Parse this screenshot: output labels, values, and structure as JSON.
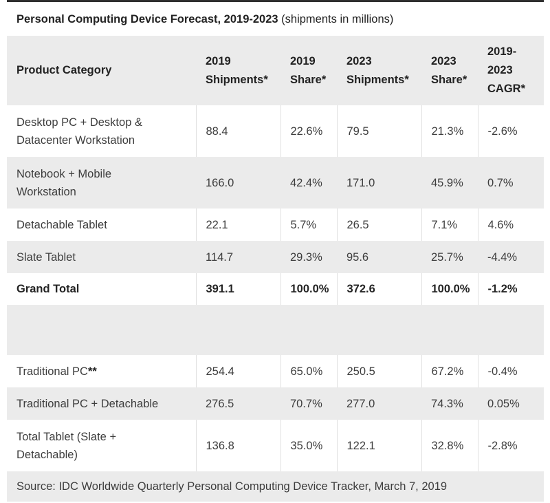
{
  "title": {
    "main": "Personal Computing Device Forecast, 2019-2023",
    "subtitle": " (shipments in millions)"
  },
  "table": {
    "columns": {
      "category": "Product Category",
      "shipments_2019": "2019\nShipments*",
      "share_2019": "2019\nShare*",
      "shipments_2023": "2023\nShipments*",
      "share_2023": "2023\nShare*",
      "cagr": "2019-\n2023\nCAGR*"
    },
    "rows": [
      {
        "label": "Desktop PC + Desktop &\nDatacenter Workstation",
        "c": [
          "88.4",
          "22.6%",
          "79.5",
          "21.3%",
          "-2.6%"
        ]
      },
      {
        "label": "Notebook + Mobile\nWorkstation",
        "c": [
          "166.0",
          "42.4%",
          "171.0",
          "45.9%",
          "0.7%"
        ]
      },
      {
        "label": "Detachable Tablet",
        "c": [
          "22.1",
          "5.7%",
          "26.5",
          "7.1%",
          "4.6%"
        ]
      },
      {
        "label": "Slate Tablet",
        "c": [
          "114.7",
          "29.3%",
          "95.6",
          "25.7%",
          "-4.4%"
        ]
      },
      {
        "label": "Grand Total",
        "c": [
          "391.1",
          "100.0%",
          "372.6",
          "100.0%",
          "-1.2%"
        ]
      },
      {
        "label": "Traditional PC",
        "suffix": "**",
        "c": [
          "254.4",
          "65.0%",
          "250.5",
          "67.2%",
          "-0.4%"
        ]
      },
      {
        "label": "Traditional PC + Detachable",
        "c": [
          "276.5",
          "70.7%",
          "277.0",
          "74.3%",
          "0.05%"
        ]
      },
      {
        "label": "Total Tablet (Slate +\nDetachable)",
        "c": [
          "136.8",
          "35.0%",
          "122.1",
          "32.8%",
          "-2.8%"
        ]
      }
    ]
  },
  "footer": {
    "source": "Source: IDC Worldwide Quarterly Personal Computing Device Tracker, March 7, 2019"
  },
  "colors": {
    "top_border": "#2f2f2f",
    "stripe_gray": "#ebebeb",
    "cell_border": "#e0e0e0",
    "heading_text": "#222222",
    "body_text": "#3d3d3d"
  },
  "chart_data": {
    "type": "table",
    "title": "Personal Computing Device Forecast, 2019-2023 (shipments in millions)",
    "columns": [
      "Product Category",
      "2019 Shipments*",
      "2019 Share*",
      "2023 Shipments*",
      "2023 Share*",
      "2019-2023 CAGR*"
    ],
    "rows": [
      [
        "Desktop PC + Desktop & Datacenter Workstation",
        "88.4",
        "22.6%",
        "79.5",
        "21.3%",
        "-2.6%"
      ],
      [
        "Notebook + Mobile Workstation",
        "166.0",
        "42.4%",
        "171.0",
        "45.9%",
        "0.7%"
      ],
      [
        "Detachable Tablet",
        "22.1",
        "5.7%",
        "26.5",
        "7.1%",
        "4.6%"
      ],
      [
        "Slate Tablet",
        "114.7",
        "29.3%",
        "95.6",
        "25.7%",
        "-4.4%"
      ],
      [
        "Grand Total",
        "391.1",
        "100.0%",
        "372.6",
        "100.0%",
        "-1.2%"
      ],
      [
        "Traditional PC**",
        "254.4",
        "65.0%",
        "250.5",
        "67.2%",
        "-0.4%"
      ],
      [
        "Traditional PC + Detachable",
        "276.5",
        "70.7%",
        "277.0",
        "74.3%",
        "0.05%"
      ],
      [
        "Total Tablet (Slate + Detachable)",
        "136.8",
        "35.0%",
        "122.1",
        "32.8%",
        "-2.8%"
      ]
    ],
    "source": "Source: IDC Worldwide Quarterly Personal Computing Device Tracker, March 7, 2019"
  }
}
